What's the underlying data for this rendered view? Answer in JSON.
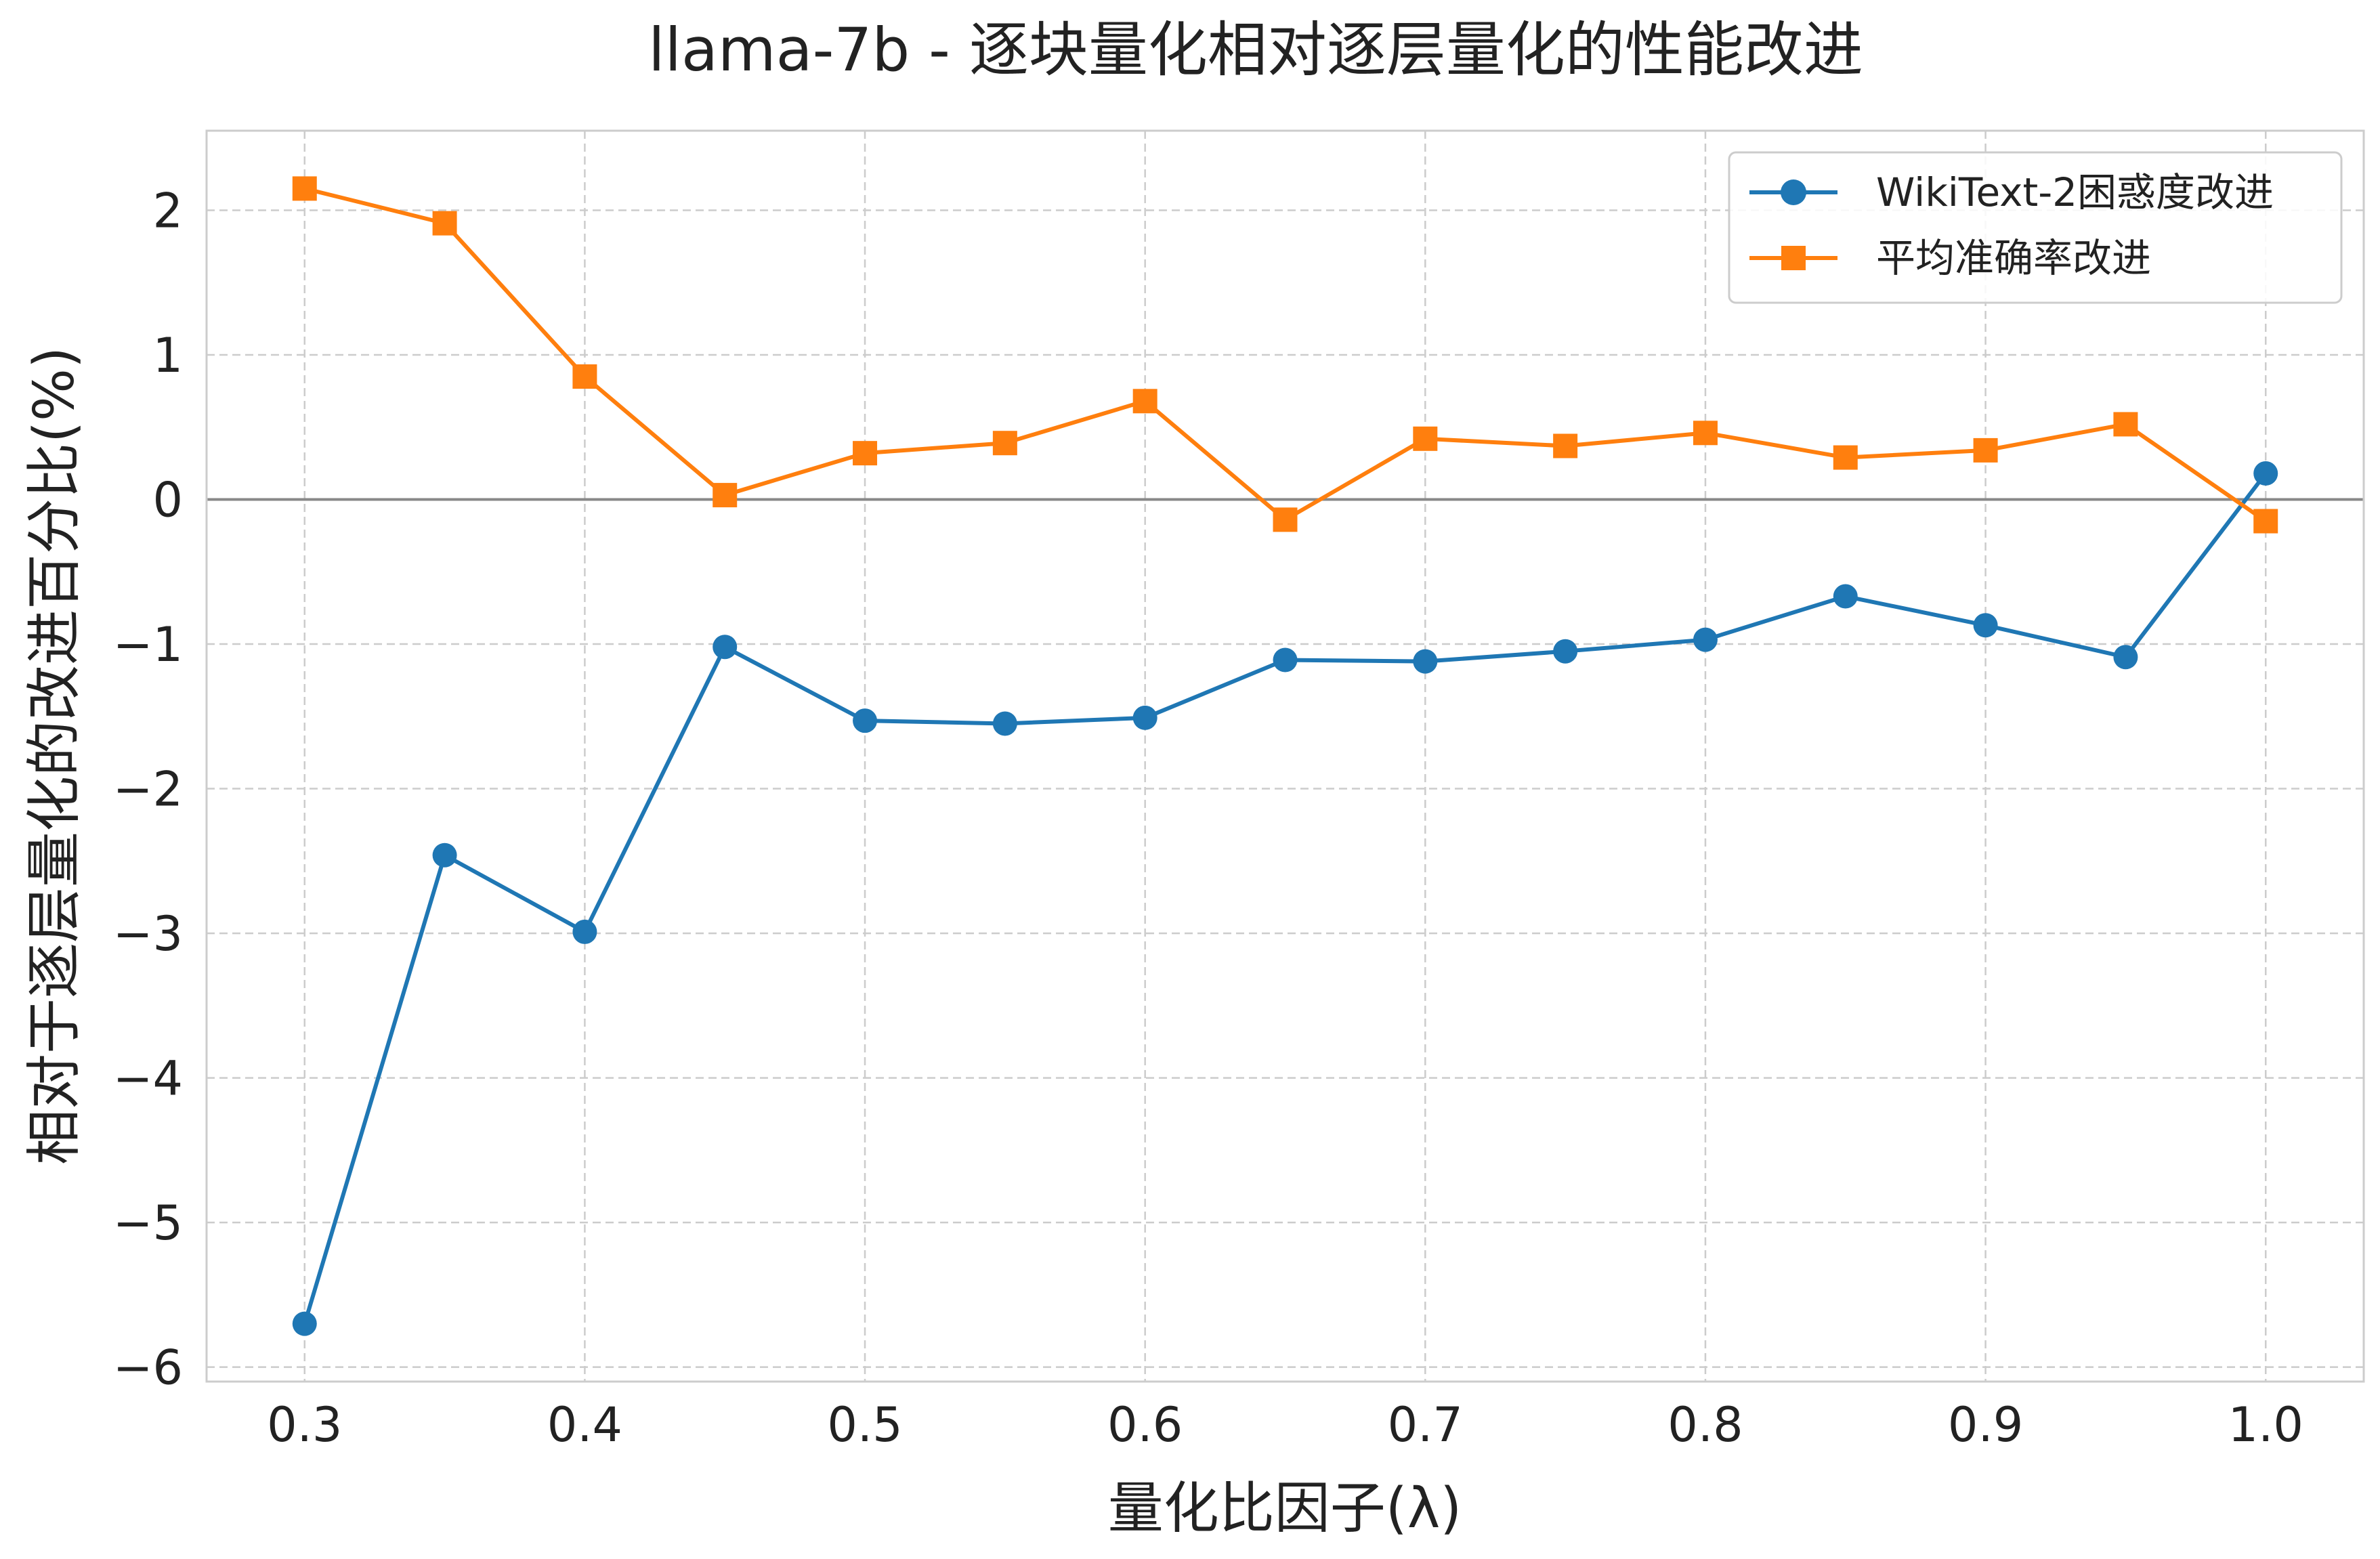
{
  "chart_data": {
    "type": "line",
    "title": "llama-7b - 逐块量化相对逐层量化的性能改进",
    "xlabel": "量化比因子(λ)",
    "ylabel": "相对于逐层量化的改进百分比(%)",
    "x": [
      0.3,
      0.35,
      0.4,
      0.45,
      0.5,
      0.55,
      0.6,
      0.65,
      0.7,
      0.75,
      0.8,
      0.85,
      0.9,
      0.95,
      1.0
    ],
    "x_tick_labels": [
      "0.3",
      "0.4",
      "0.5",
      "0.6",
      "0.7",
      "0.8",
      "0.9",
      "1.0"
    ],
    "y_tick_labels": [
      "−6",
      "−5",
      "−4",
      "−3",
      "−2",
      "−1",
      "0",
      "1",
      "2"
    ],
    "xlim": [
      0.265,
      1.035
    ],
    "ylim": [
      -6.1,
      2.55
    ],
    "grid": true,
    "zero_line": true,
    "legend_position": "top-right",
    "series": [
      {
        "name": "WikiText-2困惑度改进",
        "color": "#1f77b4",
        "marker": "circle",
        "values": [
          -5.7,
          -2.46,
          -2.99,
          -1.02,
          -1.53,
          -1.55,
          -1.51,
          -1.11,
          -1.12,
          -1.05,
          -0.97,
          -0.67,
          -0.87,
          -1.09,
          0.18
        ]
      },
      {
        "name": "平均准确率改进",
        "color": "#ff7f0e",
        "marker": "square",
        "values": [
          2.15,
          1.91,
          0.85,
          0.03,
          0.32,
          0.39,
          0.68,
          -0.14,
          0.42,
          0.37,
          0.46,
          0.29,
          0.34,
          0.52,
          -0.15
        ]
      }
    ]
  }
}
